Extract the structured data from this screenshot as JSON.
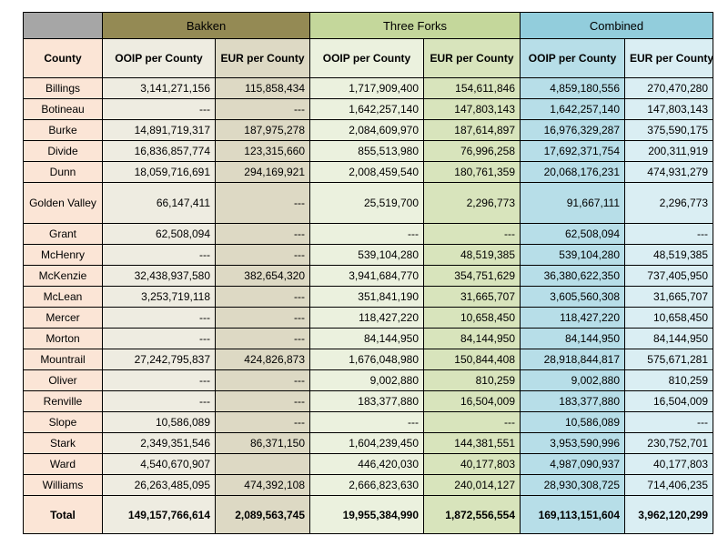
{
  "groups": {
    "bakken": "Bakken",
    "three_forks": "Three Forks",
    "combined": "Combined"
  },
  "headers": {
    "county": "County",
    "bakken_ooip": "OOIP per County",
    "bakken_eur": "EUR per County",
    "tf_ooip": "OOIP per County",
    "tf_eur": "EUR per County",
    "comb_ooip": "OOIP per County",
    "comb_eur": "EUR per County"
  },
  "rows": [
    {
      "county": "Billings",
      "b_ooip": "3,141,271,156",
      "b_eur": "115,858,434",
      "t_ooip": "1,717,909,400",
      "t_eur": "154,611,846",
      "c_ooip": "4,859,180,556",
      "c_eur": "270,470,280"
    },
    {
      "county": "Botineau",
      "b_ooip": "---",
      "b_eur": "---",
      "t_ooip": "1,642,257,140",
      "t_eur": "147,803,143",
      "c_ooip": "1,642,257,140",
      "c_eur": "147,803,143"
    },
    {
      "county": "Burke",
      "b_ooip": "14,891,719,317",
      "b_eur": "187,975,278",
      "t_ooip": "2,084,609,970",
      "t_eur": "187,614,897",
      "c_ooip": "16,976,329,287",
      "c_eur": "375,590,175"
    },
    {
      "county": "Divide",
      "b_ooip": "16,836,857,774",
      "b_eur": "123,315,660",
      "t_ooip": "855,513,980",
      "t_eur": "76,996,258",
      "c_ooip": "17,692,371,754",
      "c_eur": "200,311,919"
    },
    {
      "county": "Dunn",
      "b_ooip": "18,059,716,691",
      "b_eur": "294,169,921",
      "t_ooip": "2,008,459,540",
      "t_eur": "180,761,359",
      "c_ooip": "20,068,176,231",
      "c_eur": "474,931,279"
    },
    {
      "county": "Golden Valley",
      "b_ooip": "66,147,411",
      "b_eur": "---",
      "t_ooip": "25,519,700",
      "t_eur": "2,296,773",
      "c_ooip": "91,667,111",
      "c_eur": "2,296,773"
    },
    {
      "county": "Grant",
      "b_ooip": "62,508,094",
      "b_eur": "---",
      "t_ooip": "---",
      "t_eur": "---",
      "c_ooip": "62,508,094",
      "c_eur": "---"
    },
    {
      "county": "McHenry",
      "b_ooip": "---",
      "b_eur": "---",
      "t_ooip": "539,104,280",
      "t_eur": "48,519,385",
      "c_ooip": "539,104,280",
      "c_eur": "48,519,385"
    },
    {
      "county": "McKenzie",
      "b_ooip": "32,438,937,580",
      "b_eur": "382,654,320",
      "t_ooip": "3,941,684,770",
      "t_eur": "354,751,629",
      "c_ooip": "36,380,622,350",
      "c_eur": "737,405,950"
    },
    {
      "county": "McLean",
      "b_ooip": "3,253,719,118",
      "b_eur": "---",
      "t_ooip": "351,841,190",
      "t_eur": "31,665,707",
      "c_ooip": "3,605,560,308",
      "c_eur": "31,665,707"
    },
    {
      "county": "Mercer",
      "b_ooip": "---",
      "b_eur": "---",
      "t_ooip": "118,427,220",
      "t_eur": "10,658,450",
      "c_ooip": "118,427,220",
      "c_eur": "10,658,450"
    },
    {
      "county": "Morton",
      "b_ooip": "---",
      "b_eur": "---",
      "t_ooip": "84,144,950",
      "t_eur": "84,144,950",
      "c_ooip": "84,144,950",
      "c_eur": "84,144,950"
    },
    {
      "county": "Mountrail",
      "b_ooip": "27,242,795,837",
      "b_eur": "424,826,873",
      "t_ooip": "1,676,048,980",
      "t_eur": "150,844,408",
      "c_ooip": "28,918,844,817",
      "c_eur": "575,671,281"
    },
    {
      "county": "Oliver",
      "b_ooip": "---",
      "b_eur": "---",
      "t_ooip": "9,002,880",
      "t_eur": "810,259",
      "c_ooip": "9,002,880",
      "c_eur": "810,259"
    },
    {
      "county": "Renville",
      "b_ooip": "---",
      "b_eur": "---",
      "t_ooip": "183,377,880",
      "t_eur": "16,504,009",
      "c_ooip": "183,377,880",
      "c_eur": "16,504,009"
    },
    {
      "county": "Slope",
      "b_ooip": "10,586,089",
      "b_eur": "---",
      "t_ooip": "---",
      "t_eur": "---",
      "c_ooip": "10,586,089",
      "c_eur": "---"
    },
    {
      "county": "Stark",
      "b_ooip": "2,349,351,546",
      "b_eur": "86,371,150",
      "t_ooip": "1,604,239,450",
      "t_eur": "144,381,551",
      "c_ooip": "3,953,590,996",
      "c_eur": "230,752,701"
    },
    {
      "county": "Ward",
      "b_ooip": "4,540,670,907",
      "b_eur": "",
      "t_ooip": "446,420,030",
      "t_eur": "40,177,803",
      "c_ooip": "4,987,090,937",
      "c_eur": "40,177,803"
    },
    {
      "county": "Williams",
      "b_ooip": "26,263,485,095",
      "b_eur": "474,392,108",
      "t_ooip": "2,666,823,630",
      "t_eur": "240,014,127",
      "c_ooip": "28,930,308,725",
      "c_eur": "714,406,235"
    }
  ],
  "total": {
    "county": "Total",
    "b_ooip": "149,157,766,614",
    "b_eur": "2,089,563,745",
    "t_ooip": "19,955,384,990",
    "t_eur": "1,872,556,554",
    "c_ooip": "169,113,151,604",
    "c_eur": "3,962,120,299"
  },
  "colors": {
    "bakken": "#948a54",
    "three_forks": "#c4d79b",
    "combined": "#92cddc",
    "county": "#fbe5d6",
    "blank": "#a6a6a6"
  }
}
